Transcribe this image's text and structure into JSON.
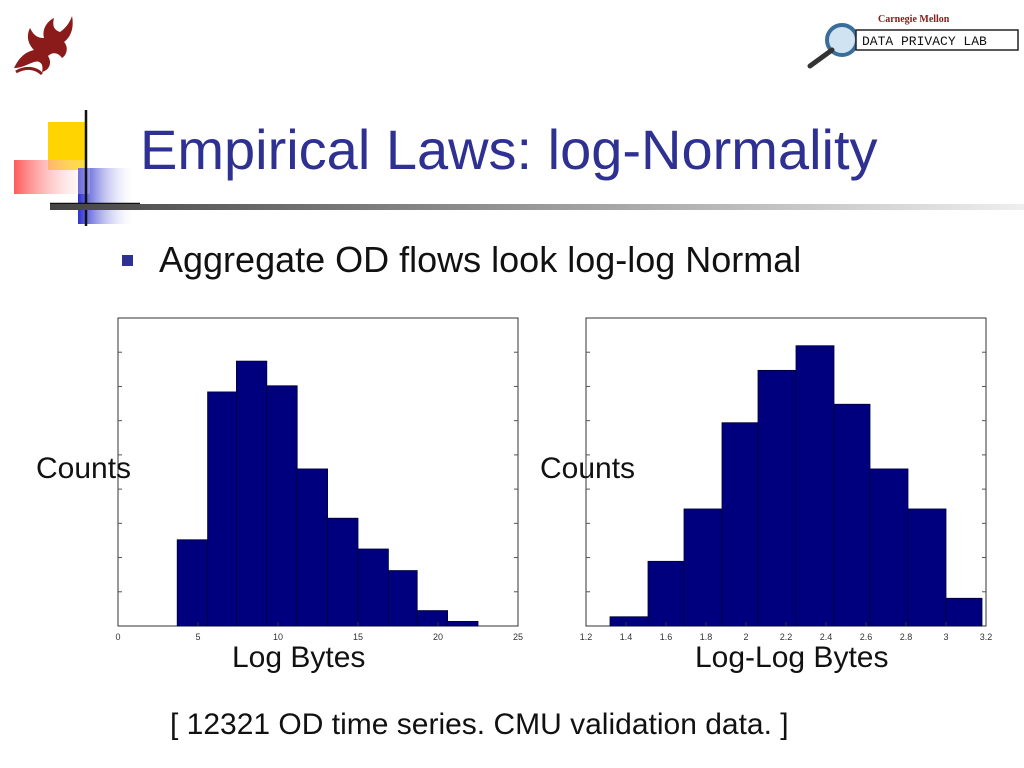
{
  "slide": {
    "title": "Empirical Laws: log-Normality",
    "bullet": "Aggregate OD flows look log-log Normal",
    "footnote": "[ 12321 OD time series.  CMU validation data. ]",
    "logo": {
      "institution": "Carnegie Mellon",
      "lab": "DATA PRIVACY LAB"
    },
    "colors": {
      "title": "#2E3192",
      "bars": "#00007F",
      "bullet": "#2E3192"
    }
  },
  "chart_data": [
    {
      "type": "bar",
      "xlabel": "Log Bytes",
      "ylabel": "Counts",
      "xlim": [
        0,
        25
      ],
      "xticks": [
        0,
        5,
        10,
        15,
        20,
        25
      ],
      "ylim": [
        0,
        1
      ],
      "bins": [
        {
          "x0": 3.7,
          "x1": 5.6,
          "value": 0.28
        },
        {
          "x0": 5.6,
          "x1": 7.4,
          "value": 0.76
        },
        {
          "x0": 7.4,
          "x1": 9.3,
          "value": 0.86
        },
        {
          "x0": 9.3,
          "x1": 11.2,
          "value": 0.78
        },
        {
          "x0": 11.2,
          "x1": 13.1,
          "value": 0.51
        },
        {
          "x0": 13.1,
          "x1": 15.0,
          "value": 0.35
        },
        {
          "x0": 15.0,
          "x1": 16.9,
          "value": 0.25
        },
        {
          "x0": 16.9,
          "x1": 18.7,
          "value": 0.18
        },
        {
          "x0": 18.7,
          "x1": 20.6,
          "value": 0.05
        },
        {
          "x0": 20.6,
          "x1": 22.5,
          "value": 0.015
        }
      ]
    },
    {
      "type": "bar",
      "xlabel": "Log-Log Bytes",
      "ylabel": "Counts",
      "xlim": [
        1.2,
        3.2
      ],
      "xticks": [
        1.2,
        1.4,
        1.6,
        1.8,
        2,
        2.2,
        2.4,
        2.6,
        2.8,
        3,
        3.2
      ],
      "ylim": [
        0,
        1
      ],
      "bins": [
        {
          "x0": 1.32,
          "x1": 1.51,
          "value": 0.03
        },
        {
          "x0": 1.51,
          "x1": 1.69,
          "value": 0.21
        },
        {
          "x0": 1.69,
          "x1": 1.88,
          "value": 0.38
        },
        {
          "x0": 1.88,
          "x1": 2.06,
          "value": 0.66
        },
        {
          "x0": 2.06,
          "x1": 2.25,
          "value": 0.83
        },
        {
          "x0": 2.25,
          "x1": 2.44,
          "value": 0.91
        },
        {
          "x0": 2.44,
          "x1": 2.62,
          "value": 0.72
        },
        {
          "x0": 2.62,
          "x1": 2.81,
          "value": 0.51
        },
        {
          "x0": 2.81,
          "x1": 3.0,
          "value": 0.38
        },
        {
          "x0": 3.0,
          "x1": 3.18,
          "value": 0.09
        }
      ]
    }
  ]
}
